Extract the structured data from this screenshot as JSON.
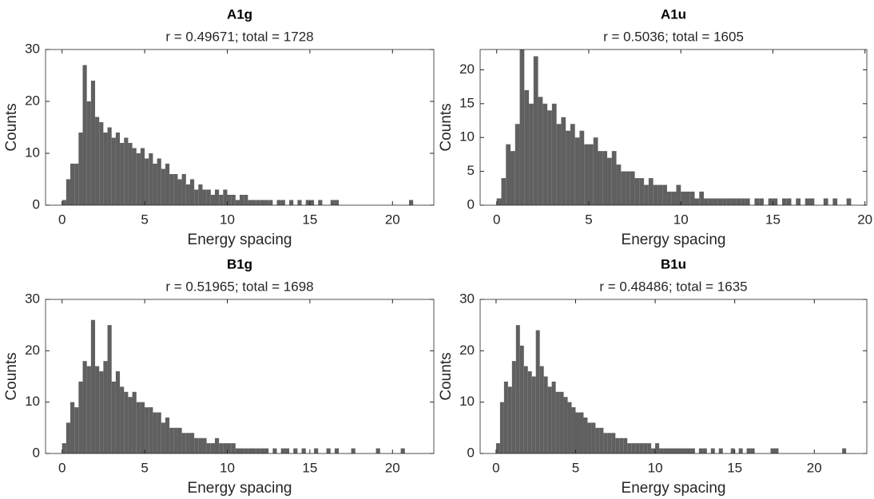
{
  "chart_data": [
    {
      "type": "histogram",
      "title": "A1g",
      "subtitle": "r = 0.49671; total = 1728",
      "xlabel": "Energy spacing",
      "ylabel": "Counts",
      "color": "#606060",
      "bins": [
        0,
        0.25,
        0.5,
        0.75,
        1,
        1.25,
        1.5,
        1.75,
        2,
        2.25,
        2.5,
        2.75,
        3,
        3.25,
        3.5,
        3.75,
        4,
        4.25,
        4.5,
        4.75,
        5,
        5.25,
        5.5,
        5.75,
        6,
        6.25,
        6.5,
        6.75,
        7,
        7.25,
        7.5,
        7.75,
        8,
        8.25,
        8.5,
        8.75,
        9,
        9.25,
        9.5,
        9.75,
        10,
        10.25,
        10.5,
        10.75,
        11,
        11.25,
        11.5,
        11.75,
        12,
        12.25,
        12.5,
        12.75,
        13,
        13.25,
        13.5,
        13.75,
        14,
        14.25,
        14.5,
        14.75,
        15,
        15.25,
        15.5,
        15.75,
        16,
        16.25,
        16.5,
        16.75,
        17,
        17.25,
        17.5,
        17.75,
        18,
        18.25,
        18.5,
        18.75,
        19,
        19.25,
        19.5,
        19.75,
        20,
        20.25,
        20.5,
        20.75,
        21,
        21.25,
        21.5
      ],
      "counts": [
        1,
        5,
        8,
        8,
        14,
        27,
        20,
        24,
        17,
        16,
        14,
        15,
        13,
        14,
        12,
        13,
        12,
        11,
        10,
        11,
        9,
        10,
        8,
        9,
        7,
        8,
        6,
        6,
        5,
        6,
        4,
        5,
        3,
        4,
        3,
        3,
        2,
        3,
        2,
        3,
        2,
        2,
        1,
        2,
        2,
        1,
        1,
        1,
        1,
        1,
        1,
        0,
        1,
        1,
        0,
        1,
        0,
        1,
        0,
        1,
        1,
        0,
        1,
        0,
        0,
        1,
        1,
        0,
        0,
        0,
        0,
        0,
        0,
        0,
        0,
        0,
        0,
        0,
        0,
        0,
        0,
        0,
        0,
        0,
        1,
        0
      ],
      "xlim": [
        -1,
        22.5
      ],
      "ylim": [
        0,
        30
      ],
      "xticks": [
        0,
        5,
        10,
        15,
        20
      ],
      "yticks": [
        0,
        10,
        20,
        30
      ]
    },
    {
      "type": "histogram",
      "title": "A1u",
      "subtitle": "r = 0.5036; total = 1605",
      "xlabel": "Energy spacing",
      "ylabel": "Counts",
      "color": "#606060",
      "bins": [
        0,
        0.25,
        0.5,
        0.75,
        1,
        1.25,
        1.5,
        1.75,
        2,
        2.25,
        2.5,
        2.75,
        3,
        3.25,
        3.5,
        3.75,
        4,
        4.25,
        4.5,
        4.75,
        5,
        5.25,
        5.5,
        5.75,
        6,
        6.25,
        6.5,
        6.75,
        7,
        7.25,
        7.5,
        7.75,
        8,
        8.25,
        8.5,
        8.75,
        9,
        9.25,
        9.5,
        9.75,
        10,
        10.25,
        10.5,
        10.75,
        11,
        11.25,
        11.5,
        11.75,
        12,
        12.25,
        12.5,
        12.75,
        13,
        13.25,
        13.5,
        13.75,
        14,
        14.25,
        14.5,
        14.75,
        15,
        15.25,
        15.5,
        15.75,
        16,
        16.25,
        16.5,
        16.75,
        17,
        17.25,
        17.5,
        17.75,
        18,
        18.25,
        18.5,
        18.75,
        19,
        19.25
      ],
      "counts": [
        1,
        4,
        9,
        8,
        12,
        23,
        17,
        15,
        22,
        16,
        15,
        14,
        15,
        12,
        13,
        11,
        12,
        10,
        11,
        9,
        9,
        10,
        8,
        8,
        7,
        8,
        6,
        5,
        5,
        5,
        4,
        4,
        3,
        4,
        3,
        3,
        3,
        2,
        2,
        3,
        2,
        2,
        2,
        1,
        2,
        1,
        1,
        1,
        1,
        1,
        1,
        1,
        1,
        1,
        1,
        0,
        1,
        1,
        0,
        1,
        1,
        0,
        1,
        1,
        0,
        1,
        0,
        1,
        1,
        0,
        0,
        1,
        0,
        1,
        0,
        0,
        1
      ],
      "xlim": [
        -0.9,
        20.1
      ],
      "ylim": [
        0,
        23
      ],
      "xticks": [
        0,
        5,
        10,
        15,
        20
      ],
      "yticks": [
        0,
        5,
        10,
        15,
        20
      ]
    },
    {
      "type": "histogram",
      "title": "B1g",
      "subtitle": "r = 0.51965; total = 1698",
      "xlabel": "Energy spacing",
      "ylabel": "Counts",
      "color": "#606060",
      "bins": [
        0,
        0.25,
        0.5,
        0.75,
        1,
        1.25,
        1.5,
        1.75,
        2,
        2.25,
        2.5,
        2.75,
        3,
        3.25,
        3.5,
        3.75,
        4,
        4.25,
        4.5,
        4.75,
        5,
        5.25,
        5.5,
        5.75,
        6,
        6.25,
        6.5,
        6.75,
        7,
        7.25,
        7.5,
        7.75,
        8,
        8.25,
        8.5,
        8.75,
        9,
        9.25,
        9.5,
        9.75,
        10,
        10.25,
        10.5,
        10.75,
        11,
        11.25,
        11.5,
        11.75,
        12,
        12.25,
        12.5,
        12.75,
        13,
        13.25,
        13.5,
        13.75,
        14,
        14.25,
        14.5,
        14.75,
        15,
        15.25,
        15.5,
        15.75,
        16,
        16.25,
        16.5,
        16.75,
        17,
        17.25,
        17.5,
        17.75,
        18,
        18.25,
        18.5,
        18.75,
        19,
        19.25,
        19.5,
        19.75,
        20,
        20.25,
        20.5,
        20.75,
        21
      ],
      "counts": [
        2,
        6,
        10,
        9,
        14,
        18,
        17,
        26,
        17,
        16,
        18,
        25,
        14,
        16,
        13,
        12,
        11,
        12,
        10,
        10,
        9,
        9,
        8,
        8,
        6,
        7,
        5,
        5,
        5,
        4,
        4,
        4,
        3,
        3,
        3,
        2,
        2,
        3,
        2,
        2,
        2,
        2,
        1,
        1,
        1,
        1,
        1,
        1,
        1,
        1,
        0,
        1,
        0,
        1,
        1,
        0,
        1,
        0,
        1,
        0,
        0,
        1,
        0,
        0,
        1,
        0,
        1,
        0,
        0,
        0,
        1,
        0,
        0,
        0,
        0,
        0,
        1,
        0,
        0,
        0,
        0,
        0,
        1,
        0
      ],
      "xlim": [
        -1,
        22.5
      ],
      "ylim": [
        0,
        30
      ],
      "xticks": [
        0,
        5,
        10,
        15,
        20
      ],
      "yticks": [
        0,
        10,
        20,
        30
      ]
    },
    {
      "type": "histogram",
      "title": "B1u",
      "subtitle": "r = 0.48486; total = 1635",
      "xlabel": "Energy spacing",
      "ylabel": "Counts",
      "color": "#606060",
      "bins": [
        0,
        0.25,
        0.5,
        0.75,
        1,
        1.25,
        1.5,
        1.75,
        2,
        2.25,
        2.5,
        2.75,
        3,
        3.25,
        3.5,
        3.75,
        4,
        4.25,
        4.5,
        4.75,
        5,
        5.25,
        5.5,
        5.75,
        6,
        6.25,
        6.5,
        6.75,
        7,
        7.25,
        7.5,
        7.75,
        8,
        8.25,
        8.5,
        8.75,
        9,
        9.25,
        9.5,
        9.75,
        10,
        10.25,
        10.5,
        10.75,
        11,
        11.25,
        11.5,
        11.75,
        12,
        12.25,
        12.5,
        12.75,
        13,
        13.25,
        13.5,
        13.75,
        14,
        14.25,
        14.5,
        14.75,
        15,
        15.25,
        15.5,
        15.75,
        16,
        16.25,
        16.5,
        16.75,
        17,
        17.25,
        17.5,
        17.75,
        18,
        18.25,
        18.5,
        18.75,
        19,
        19.25,
        19.5,
        19.75,
        20,
        20.25,
        20.5,
        20.75,
        21,
        21.25,
        21.5,
        21.75,
        22
      ],
      "counts": [
        2,
        10,
        14,
        13,
        18,
        25,
        21,
        17,
        16,
        15,
        24,
        17,
        15,
        13,
        14,
        12,
        12,
        11,
        10,
        9,
        8,
        8,
        7,
        6,
        6,
        5,
        5,
        4,
        4,
        4,
        3,
        3,
        3,
        2,
        2,
        2,
        2,
        2,
        2,
        1,
        2,
        1,
        1,
        1,
        1,
        1,
        1,
        1,
        1,
        1,
        0,
        1,
        1,
        0,
        1,
        0,
        1,
        0,
        0,
        1,
        0,
        1,
        0,
        1,
        1,
        0,
        0,
        0,
        0,
        1,
        1,
        0,
        0,
        0,
        0,
        0,
        0,
        0,
        0,
        0,
        0,
        0,
        0,
        0,
        0,
        0,
        0,
        1
      ],
      "xlim": [
        -1,
        23.3
      ],
      "ylim": [
        0,
        30
      ],
      "xticks": [
        0,
        5,
        10,
        15,
        20
      ],
      "yticks": [
        0,
        10,
        20,
        30
      ]
    }
  ]
}
